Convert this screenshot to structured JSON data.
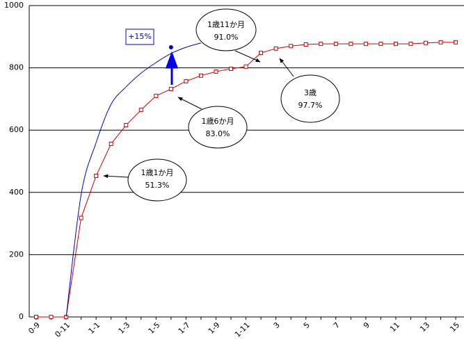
{
  "chart_data": {
    "type": "line",
    "categories": [
      "0-9",
      null,
      "0-11",
      null,
      "1-1",
      null,
      "1-3",
      null,
      "1-5",
      null,
      "1-7",
      null,
      "1-9",
      null,
      "1-11",
      null,
      "3",
      null,
      "5",
      null,
      "7",
      null,
      "9",
      null,
      "11",
      null,
      "13",
      null,
      "15"
    ],
    "series": [
      {
        "color": "#cc0000",
        "marker": "square",
        "smooth": false,
        "values": [
          0,
          0,
          0,
          318,
          453,
          556,
          616,
          665,
          710,
          732,
          757,
          775,
          788,
          797,
          804,
          848,
          862,
          870,
          875,
          877,
          877,
          877,
          877,
          877,
          877,
          877,
          880,
          882,
          882
        ]
      },
      {
        "color": "#0000cc",
        "marker": "none",
        "smooth": true,
        "values": [
          null,
          null,
          0,
          393,
          560,
          683,
          739,
          783,
          817,
          846,
          866,
          880,
          null,
          null,
          null,
          null,
          null,
          null,
          null,
          null,
          null,
          null,
          null,
          null,
          null,
          null,
          null,
          null,
          null
        ]
      },
      {
        "color": "#0000cc",
        "marker": "dot",
        "smooth": false,
        "values": [
          null,
          null,
          null,
          null,
          null,
          null,
          null,
          null,
          null,
          866,
          null,
          null,
          null,
          null,
          null,
          null,
          null,
          null,
          null,
          null,
          null,
          null,
          null,
          null,
          null,
          null,
          null,
          null,
          null
        ]
      }
    ],
    "ylim": [
      0,
      1000
    ],
    "yticks": [
      0,
      200,
      400,
      600,
      800,
      1000
    ],
    "grid": true,
    "annotations": [
      {
        "lines": [
          "1歳11か月",
          "91.0%"
        ]
      },
      {
        "lines": [
          "3歳",
          "97.7%"
        ]
      },
      {
        "lines": [
          "1歳6か月",
          "83.0%"
        ]
      },
      {
        "lines": [
          "1歳1か月",
          "51.3%"
        ]
      },
      {
        "lines": [
          "+15%"
        ]
      }
    ]
  }
}
